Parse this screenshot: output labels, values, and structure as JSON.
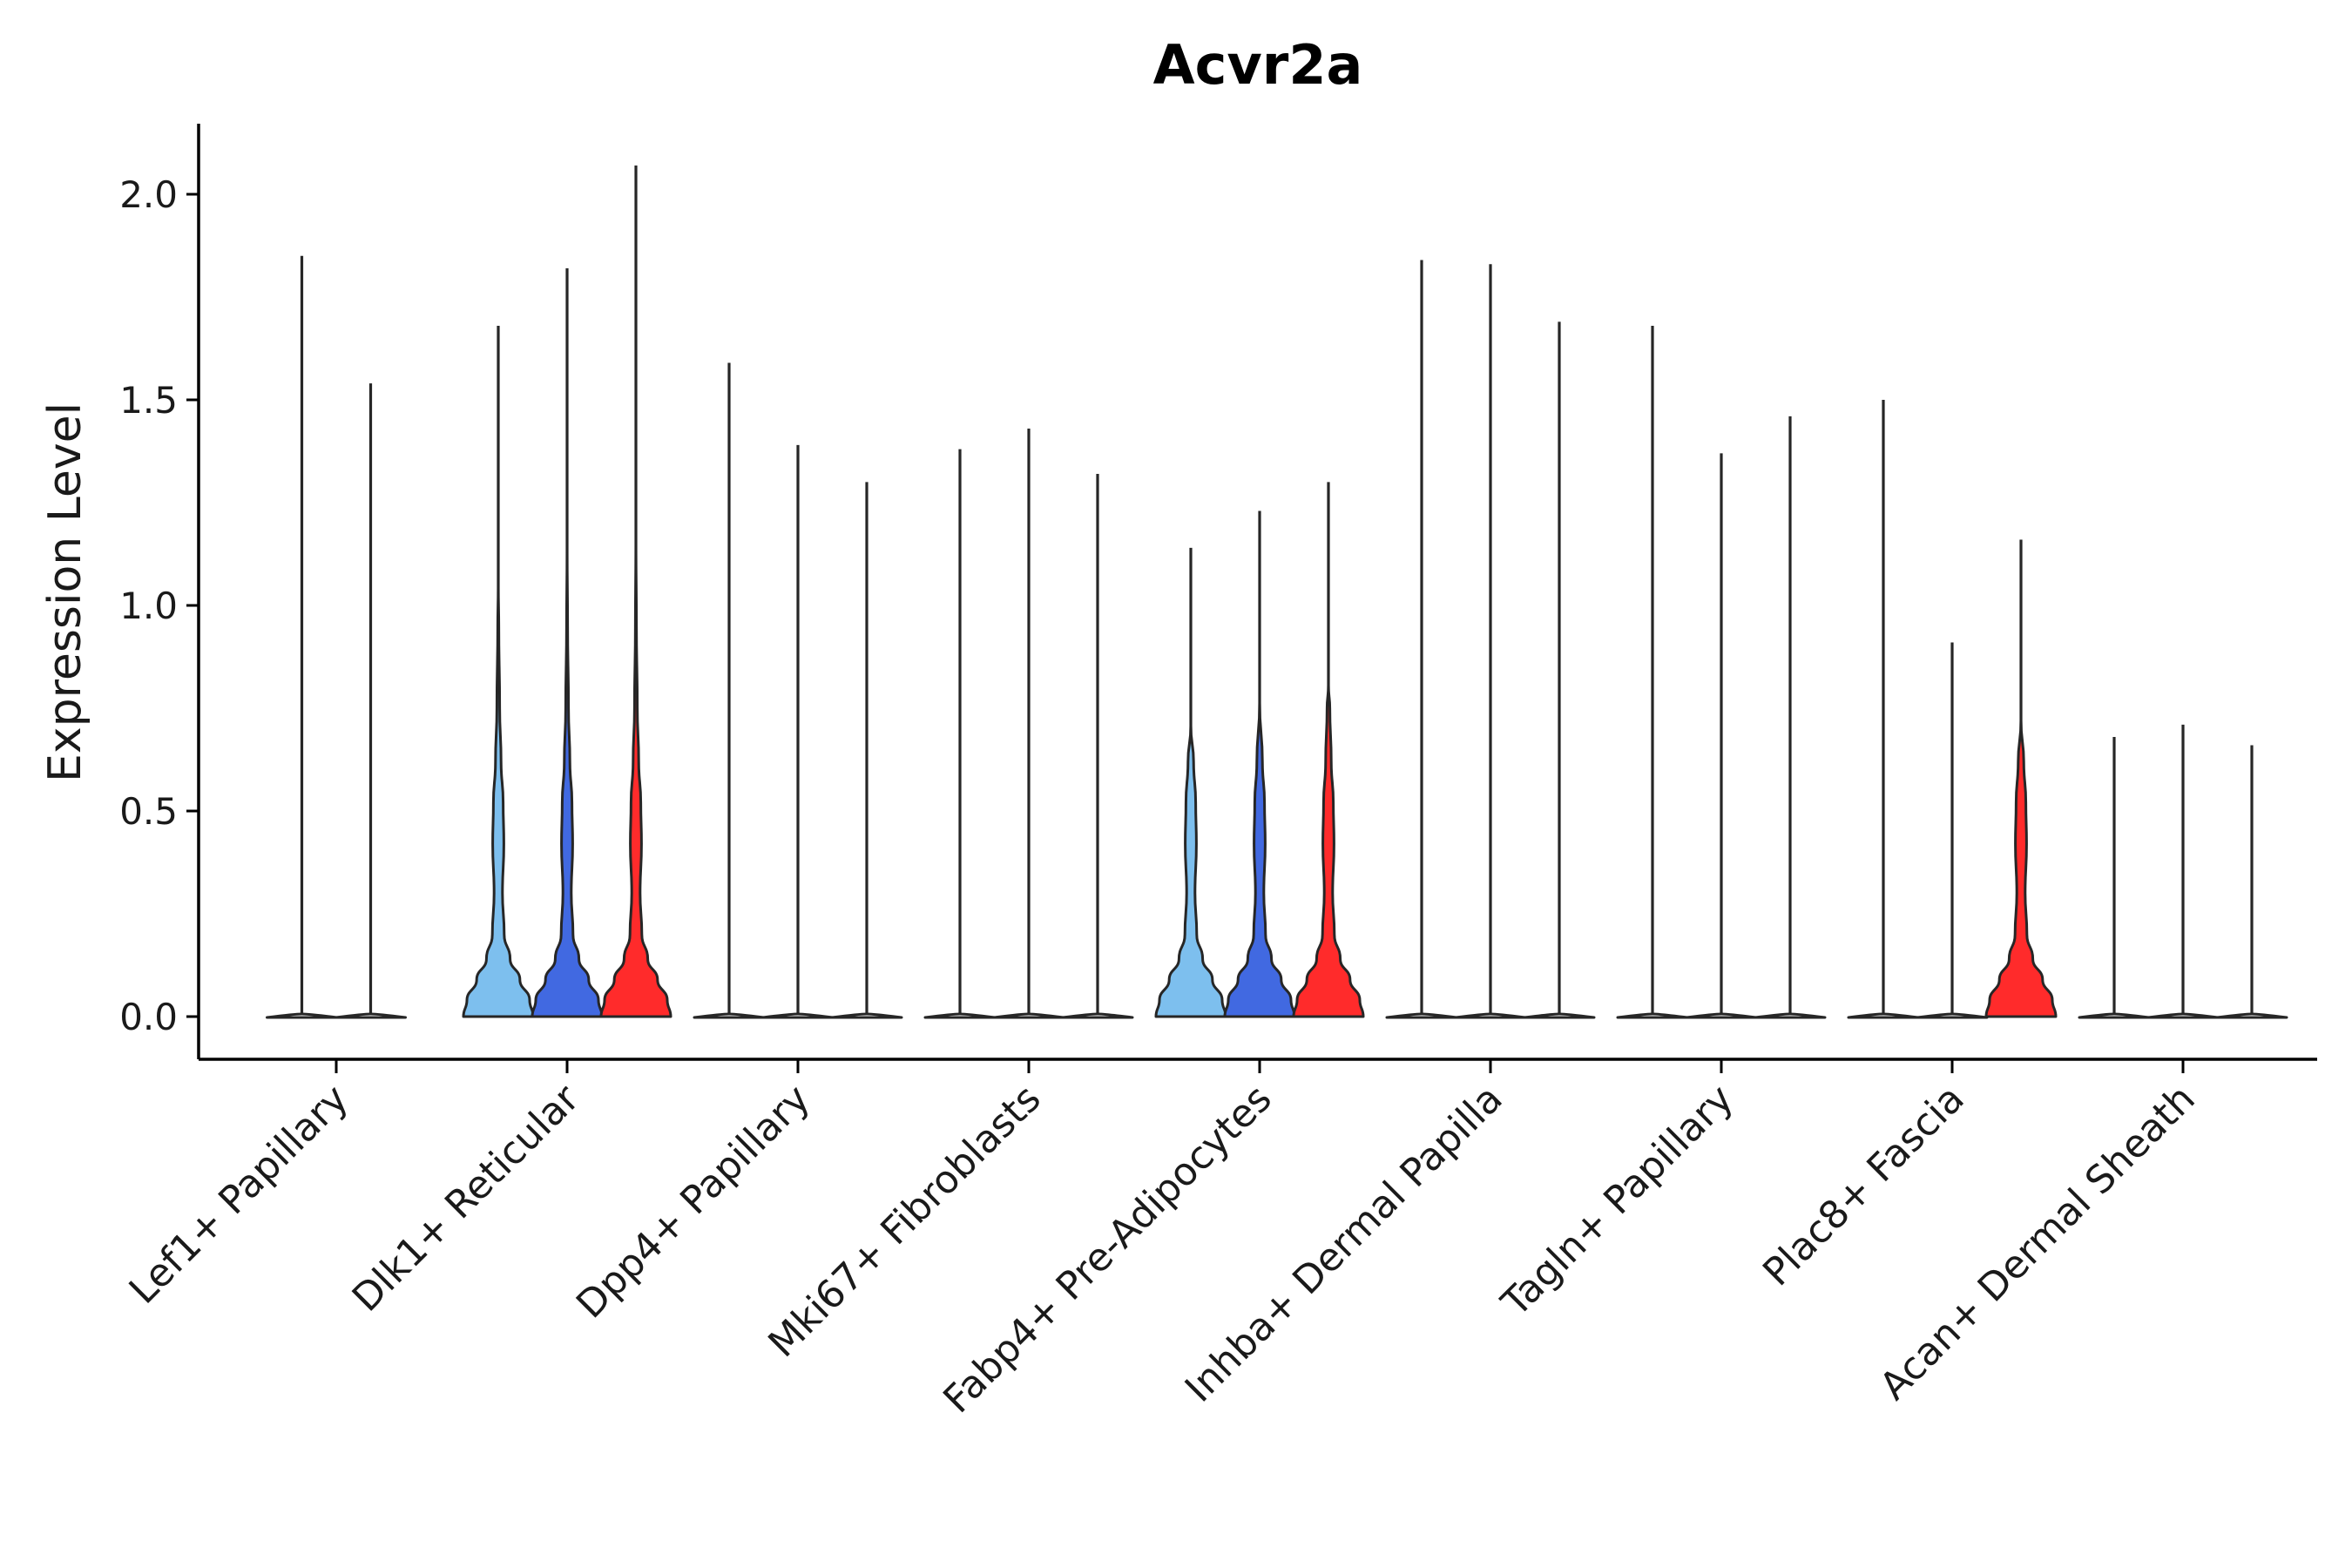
{
  "chart_data": {
    "type": "violin",
    "title": "Acvr2a",
    "xlabel": "",
    "ylabel": "Expression Level",
    "ylim": [
      -0.1,
      2.17
    ],
    "yticks": [
      0.0,
      0.5,
      1.0,
      1.5,
      2.0
    ],
    "ytick_labels": [
      "0.0",
      "0.5",
      "1.0",
      "1.5",
      "2.0"
    ],
    "grid": false,
    "legend": "none",
    "colors": {
      "light": "#7dbfee",
      "mid": "#4169e1",
      "red": "#ff2b2b",
      "outline": "#262626",
      "none": "#ffffff"
    },
    "categories": [
      {
        "label": "Lef1+ Papillary",
        "violins": [
          {
            "max": 1.85,
            "fill": "none",
            "shape": "flat"
          },
          {
            "max": 1.54,
            "fill": "none",
            "shape": "flat"
          }
        ]
      },
      {
        "label": "Dlk1+ Reticular",
        "violins": [
          {
            "max": 1.68,
            "fill": "light",
            "shape": "bulge"
          },
          {
            "max": 1.82,
            "fill": "mid",
            "shape": "bulge"
          },
          {
            "max": 2.07,
            "fill": "red",
            "shape": "bulge"
          }
        ]
      },
      {
        "label": "Dpp4+ Papillary",
        "violins": [
          {
            "max": 1.59,
            "fill": "none",
            "shape": "flat"
          },
          {
            "max": 1.39,
            "fill": "none",
            "shape": "flat"
          },
          {
            "max": 1.3,
            "fill": "none",
            "shape": "flat"
          }
        ]
      },
      {
        "label": "Mki67+ Fibroblasts",
        "violins": [
          {
            "max": 1.38,
            "fill": "none",
            "shape": "flat"
          },
          {
            "max": 1.43,
            "fill": "none",
            "shape": "flat"
          },
          {
            "max": 1.32,
            "fill": "none",
            "shape": "flat"
          }
        ]
      },
      {
        "label": "Fabp4+ Pre-Adipocytes",
        "violins": [
          {
            "max": 1.14,
            "fill": "light",
            "shape": "bulge"
          },
          {
            "max": 1.23,
            "fill": "mid",
            "shape": "bulge"
          },
          {
            "max": 1.3,
            "fill": "red",
            "shape": "bulge"
          }
        ]
      },
      {
        "label": "Inhba+ Dermal Papilla",
        "violins": [
          {
            "max": 1.84,
            "fill": "none",
            "shape": "flat"
          },
          {
            "max": 1.83,
            "fill": "none",
            "shape": "flat"
          },
          {
            "max": 1.69,
            "fill": "none",
            "shape": "flat"
          }
        ]
      },
      {
        "label": "Tagln+ Papillary",
        "violins": [
          {
            "max": 1.68,
            "fill": "none",
            "shape": "flat"
          },
          {
            "max": 1.37,
            "fill": "none",
            "shape": "flat"
          },
          {
            "max": 1.46,
            "fill": "none",
            "shape": "flat"
          }
        ]
      },
      {
        "label": "Plac8+ Fascia",
        "violins": [
          {
            "max": 1.5,
            "fill": "none",
            "shape": "flat"
          },
          {
            "max": 0.91,
            "fill": "none",
            "shape": "flat"
          },
          {
            "max": 1.16,
            "fill": "red",
            "shape": "bulge"
          }
        ]
      },
      {
        "label": "Acan+ Dermal Sheath",
        "violins": [
          {
            "max": 0.68,
            "fill": "none",
            "shape": "flat"
          },
          {
            "max": 0.71,
            "fill": "none",
            "shape": "flat"
          },
          {
            "max": 0.66,
            "fill": "none",
            "shape": "flat"
          }
        ]
      }
    ]
  }
}
